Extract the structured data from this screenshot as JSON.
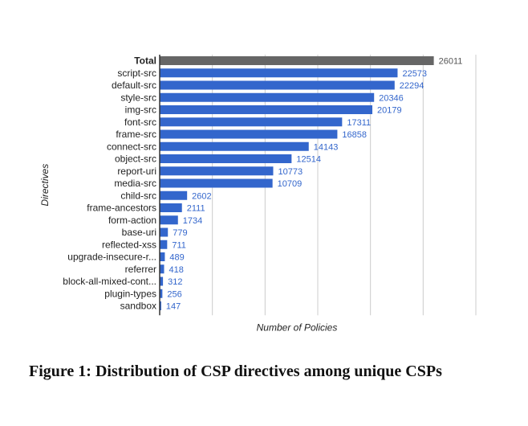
{
  "chart_data": {
    "type": "bar",
    "orientation": "horizontal",
    "categories": [
      "Total",
      "script-src",
      "default-src",
      "style-src",
      "img-src",
      "font-src",
      "frame-src",
      "connect-src",
      "object-src",
      "report-uri",
      "media-src",
      "child-src",
      "frame-ancestors",
      "form-action",
      "base-uri",
      "reflected-xss",
      "upgrade-insecure-r...",
      "referrer",
      "block-all-mixed-cont...",
      "plugin-types",
      "sandbox"
    ],
    "values": [
      26011,
      22573,
      22294,
      20346,
      20179,
      17311,
      16858,
      14143,
      12514,
      10773,
      10709,
      2602,
      2111,
      1734,
      779,
      711,
      489,
      418,
      312,
      256,
      147
    ],
    "xlabel": "Number of Policies",
    "ylabel": "Directives",
    "xlim": [
      0,
      30000
    ],
    "grid": true,
    "colors": {
      "total": "#666666",
      "bar": "#3366cc",
      "value_label": "#3366cc",
      "total_label": "#555555",
      "grid": "#cccccc"
    }
  },
  "caption": "Figure 1: Distribution of CSP directives among unique CSPs"
}
